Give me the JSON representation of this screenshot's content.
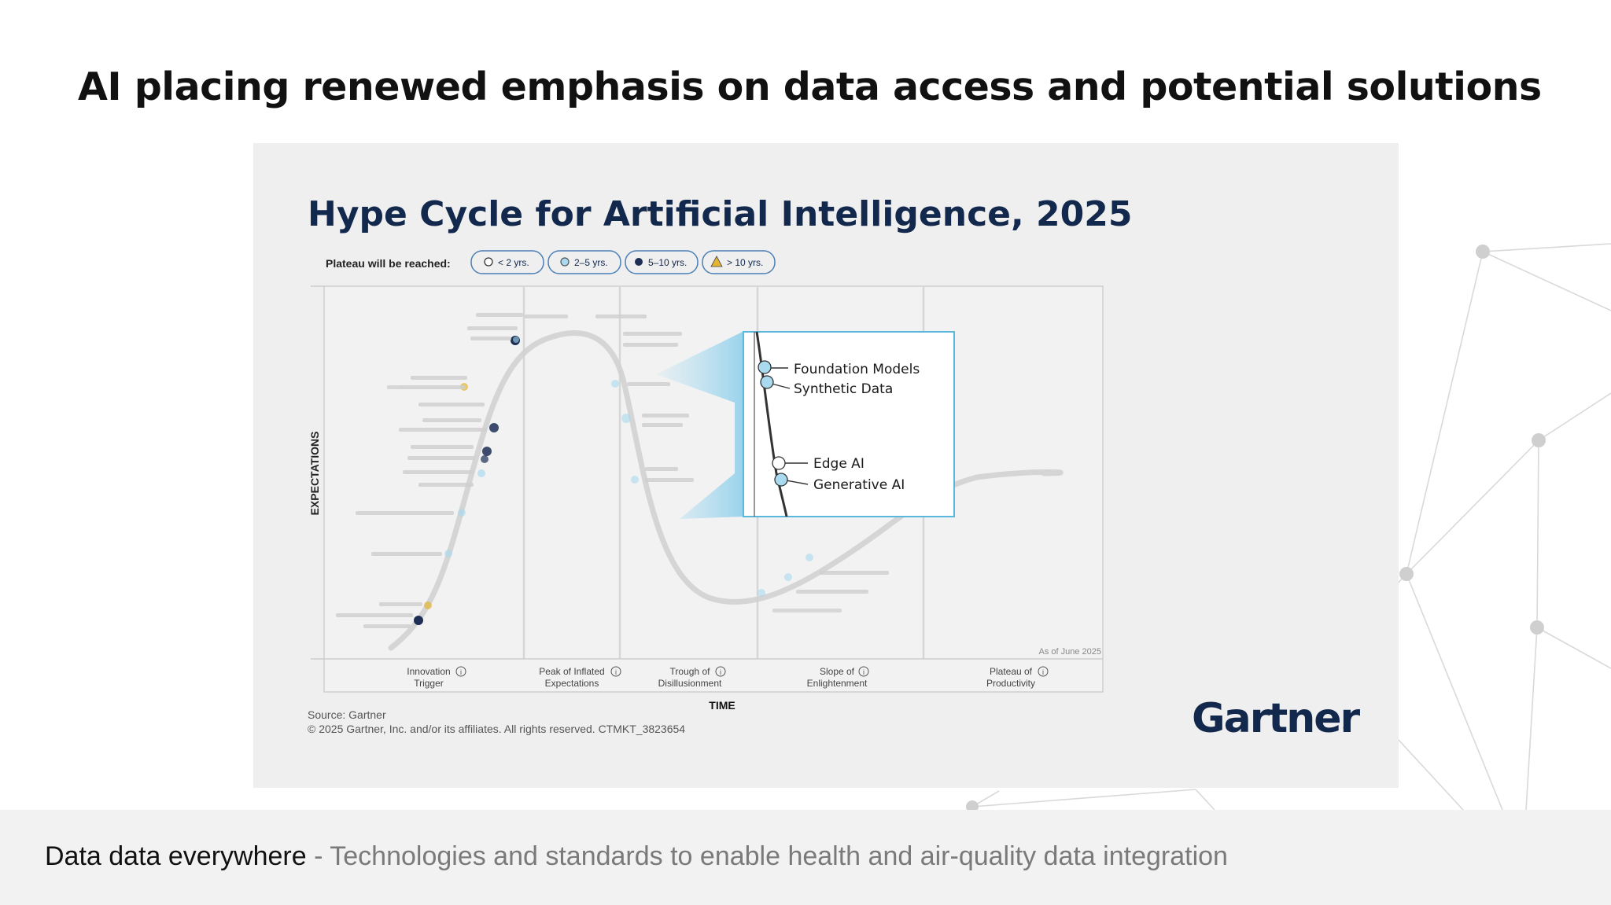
{
  "slide": {
    "title": "AI placing renewed emphasis on data access and potential solutions"
  },
  "figure": {
    "title": "Hype Cycle for Artificial Intelligence, 2025",
    "legend_label": "Plateau will be reached:",
    "legend": [
      {
        "label": "< 2 yrs.",
        "icon": "open-circle-icon"
      },
      {
        "label": "2–5 yrs.",
        "icon": "light-blue-circle-icon"
      },
      {
        "label": "5–10 yrs.",
        "icon": "dark-circle-icon"
      },
      {
        "label": "> 10 yrs.",
        "icon": "warning-triangle-icon"
      }
    ],
    "y_axis_label": "EXPECTATIONS",
    "x_axis_label": "TIME",
    "as_of": "As of June 2025",
    "phases": [
      {
        "line1": "Innovation",
        "line2": "Trigger"
      },
      {
        "line1": "Peak of Inflated",
        "line2": "Expectations"
      },
      {
        "line1": "Trough of",
        "line2": "Disillusionment"
      },
      {
        "line1": "Slope of",
        "line2": "Enlightenment"
      },
      {
        "line1": "Plateau of",
        "line2": "Productivity"
      }
    ],
    "callout": [
      {
        "label": "Foundation Models",
        "marker": "light-blue"
      },
      {
        "label": "Synthetic Data",
        "marker": "light-blue"
      },
      {
        "label": "Edge AI",
        "marker": "open"
      },
      {
        "label": "Generative AI",
        "marker": "light-blue"
      }
    ],
    "source": "Source: Gartner",
    "copyright": "© 2025 Gartner, Inc. and/or its affiliates. All rights reserved. CTMKT_3823654",
    "brand": "Gartner"
  },
  "footer": {
    "deck_title": "Data data everywhere",
    "separator": " - ",
    "subtitle": "Technologies and standards to enable health and air-quality data integration"
  },
  "colors": {
    "title_navy": "#12284c",
    "callout_blue": "#5bb8dd",
    "marker_light_blue": "#a9daef",
    "marker_dark": "#1d2f55",
    "marker_yellow": "#e3b533"
  }
}
